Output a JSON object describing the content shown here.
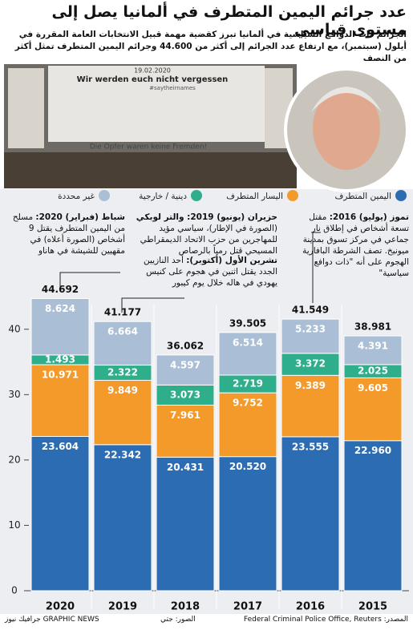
{
  "title": "عدد جرائم اليمين المتطرف في ألمانيا يصل إلى مستوى قياسي",
  "subtitle": "الجرائم ذات الدوافع السياسية في ألمانيا تبرز كقضية مهمة قبيل الانتخابات العامة المقررة في أيلول (سبتمبر)، مع ارتفاع عدد الجرائم إلى أكثر من 44.600 وجرائم اليمين المتطرف تمثل أكثر من النصف",
  "photo": {
    "date": "19.02.2020",
    "banner": "Wir werden euch nicht vergessen",
    "hashtag": "#saytheirnames",
    "sign": "Die Opfer waren keine Fremden!"
  },
  "annotations": [
    {
      "lead": "شباط (فبراير) 2020:",
      "text": "مسلح من اليمين المتطرف يقتل 9 أشخاص (الصورة أعلاه) في مقهيين للشيشة في هاناو"
    },
    {
      "lead": "حزيران (يونيو) 2019: والتر لوبكي",
      "text": "(الصورة في الإطار)، سياسي مؤيد للمهاجرين من حزب الاتحاد الديمقراطي المسيحي قتل رمياً بالرصاص"
    },
    {
      "lead": "تشرين الأول (أكتوبر):",
      "text": "أحد النازيين الجدد يقتل اثنين في هجوم على كنيس يهودي في هاله خلال يوم كيبور"
    },
    {
      "lead": "تموز (يوليو) 2016:",
      "text": "مقتل تسعة أشخاص في إطلاق نار جماعي في مركز تسوق بمدينة ميونيخ. تصف الشرطة البافارية الهجوم على أنه \"ذات دوافع سياسية\""
    }
  ],
  "chart_data": {
    "type": "stacked_bar",
    "categories": [
      "2020",
      "2019",
      "2018",
      "2017",
      "2016",
      "2015"
    ],
    "series": [
      {
        "name": "اليمين المتطرف",
        "color": "#2b6cb3",
        "values": [
          23.604,
          22.342,
          20.431,
          20.52,
          23.555,
          22.96
        ],
        "value_labels": [
          "23.604",
          "22.342",
          "20.431",
          "20.520",
          "23.555",
          "22.960"
        ]
      },
      {
        "name": "اليسار المتطرف",
        "color": "#f39a2b",
        "values": [
          10.971,
          9.849,
          7.961,
          9.752,
          9.389,
          9.605
        ],
        "value_labels": [
          "10.971",
          "9.849",
          "7.961",
          "9.752",
          "9.389",
          "9.605"
        ]
      },
      {
        "name": "دينية / خارجية",
        "color": "#2fae8b",
        "values": [
          1.493,
          2.322,
          3.073,
          2.719,
          3.372,
          2.025
        ],
        "value_labels": [
          "1.493",
          "2.322",
          "3.073",
          "2.719",
          "3.372",
          "2.025"
        ]
      },
      {
        "name": "غير محددة",
        "color": "#aabfd6",
        "values": [
          8.624,
          6.664,
          4.597,
          6.514,
          5.233,
          4.391
        ],
        "value_labels": [
          "8.624",
          "6.664",
          "4.597",
          "6.514",
          "5.233",
          "4.391"
        ]
      }
    ],
    "totals": [
      44.692,
      41.177,
      36.062,
      39.505,
      41.549,
      38.981
    ],
    "ylim": [
      0,
      45
    ],
    "yticks": [
      0,
      10,
      20,
      30,
      40
    ]
  },
  "footer": {
    "source": "المصدر: Federal Criminal Police Office, Reuters",
    "photos": "الصور: جتي",
    "credit": "GRAPHIC NEWS جرافيك نيوز"
  }
}
